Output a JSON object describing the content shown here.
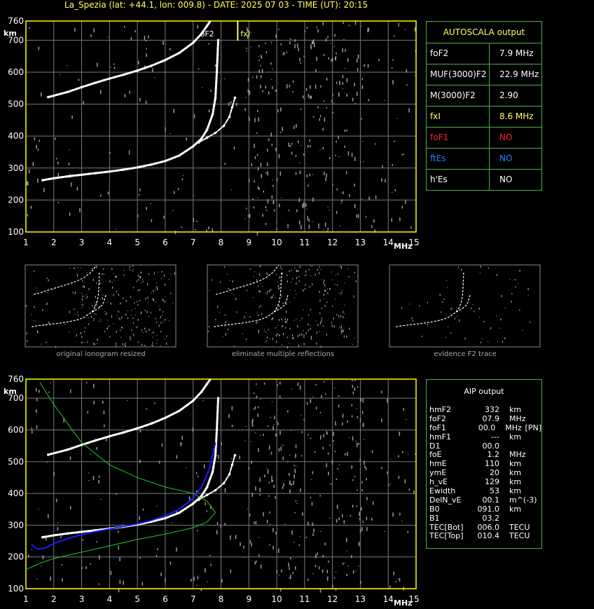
{
  "header": {
    "title": "La_Spezia (lat: +44.1, lon: 009.8) - DATE: 2025 07 03 - TIME (UT): 20:15"
  },
  "colors": {
    "axis": "#ffff00",
    "grid": "#7a7a7a",
    "trace": "#ffffff",
    "noise": "#9a9a9a",
    "border": "#4caf50",
    "green_curve": "#22cc22",
    "blue_curve": "#1a1aff",
    "red": "#ff2020",
    "blue_text": "#2080ff",
    "yellow_text": "#ffff66"
  },
  "autoscala": {
    "title": "AUTOSCALA output",
    "rows": [
      {
        "key": "foF2",
        "value": "7.9 MHz",
        "color": "#ffffff"
      },
      {
        "key": "MUF(3000)F2",
        "value": "22.9 MHz",
        "color": "#ffffff"
      },
      {
        "key": "M(3000)F2",
        "value": "2.90",
        "color": "#ffffff"
      },
      {
        "key": "fxI",
        "value": "8.6 MHz",
        "color": "#ffff66"
      },
      {
        "key": "foF1",
        "value": "NO",
        "color": "#ff2020"
      },
      {
        "key": "ftEs",
        "value": "NO",
        "color": "#2080ff"
      },
      {
        "key": "h'Es",
        "value": "NO",
        "color": "#ffffff"
      }
    ]
  },
  "aip": {
    "title": "AIP output",
    "rows": [
      {
        "k": "hmF2",
        "v": "332",
        "u": "km",
        "x": ""
      },
      {
        "k": "foF2",
        "v": "07.9",
        "u": "MHz",
        "x": ""
      },
      {
        "k": "foF1",
        "v": "00.0",
        "u": "MHz",
        "x": "[PN]"
      },
      {
        "k": "hmF1",
        "v": "---",
        "u": "km",
        "x": ""
      },
      {
        "k": "D1",
        "v": "00.0",
        "u": "",
        "x": ""
      },
      {
        "k": "foE",
        "v": "1.2",
        "u": "MHz",
        "x": ""
      },
      {
        "k": "hmE",
        "v": "110",
        "u": "km",
        "x": ""
      },
      {
        "k": "ymE",
        "v": "20",
        "u": "km",
        "x": ""
      },
      {
        "k": "h_vE",
        "v": "129",
        "u": "km",
        "x": ""
      },
      {
        "k": "Ewidth",
        "v": "53",
        "u": "km",
        "x": ""
      },
      {
        "k": "DelN_vE",
        "v": "00.1",
        "u": "m^(-3)",
        "x": ""
      },
      {
        "k": "B0",
        "v": "091.0",
        "u": "km",
        "x": ""
      },
      {
        "k": "B1",
        "v": "03.2",
        "u": "",
        "x": ""
      },
      {
        "k": "TEC[Bot]",
        "v": "006.0",
        "u": "TECU",
        "x": ""
      },
      {
        "k": "TEC[Top]",
        "v": "010.4",
        "u": "TECU",
        "x": ""
      }
    ]
  },
  "thumbnails": [
    {
      "label": "original ionogram resized"
    },
    {
      "label": "eliminate multiple reflections"
    },
    {
      "label": "evidence F2 trace"
    }
  ],
  "chart_data": [
    {
      "type": "scatter",
      "title": "",
      "xlabel": "MHz",
      "ylabel": "km",
      "xlim": [
        1,
        15
      ],
      "ylim": [
        100,
        760
      ],
      "xticks": [
        1,
        2,
        3,
        4,
        5,
        6,
        7,
        8,
        9,
        10,
        11,
        12,
        13,
        14,
        15
      ],
      "yticks": [
        100,
        200,
        300,
        400,
        500,
        600,
        700,
        760
      ],
      "grid": true,
      "annotations": [
        {
          "text": "oF2",
          "x": 7.5,
          "y": 720
        },
        {
          "text": "fxI",
          "x": 8.6,
          "y": 720
        }
      ],
      "series": [
        {
          "role": "F2 ordinary trace",
          "x": [
            1.6,
            2.0,
            2.5,
            3.0,
            3.5,
            4.0,
            4.5,
            5.0,
            5.5,
            6.0,
            6.5,
            7.0,
            7.3,
            7.5,
            7.7,
            7.8,
            7.85,
            7.9
          ],
          "y": [
            262,
            268,
            274,
            279,
            284,
            289,
            295,
            302,
            311,
            322,
            339,
            368,
            392,
            420,
            468,
            520,
            600,
            700
          ]
        },
        {
          "role": "F2 extraordinary trace",
          "x": [
            7.2,
            7.5,
            7.8,
            8.1,
            8.3,
            8.4,
            8.5
          ],
          "y": [
            380,
            395,
            410,
            432,
            460,
            490,
            520
          ]
        },
        {
          "role": "2F2 multiple reflection",
          "x": [
            1.8,
            2.5,
            3.0,
            3.5,
            4.0,
            4.5,
            5.0,
            5.5,
            6.0,
            6.5,
            7.0,
            7.3,
            7.5,
            7.6
          ],
          "y": [
            522,
            538,
            553,
            567,
            580,
            592,
            605,
            620,
            638,
            660,
            692,
            720,
            745,
            758
          ]
        }
      ]
    },
    {
      "type": "line",
      "title": "",
      "xlabel": "MHz",
      "ylabel": "km",
      "xlim": [
        1,
        15
      ],
      "ylim": [
        100,
        760
      ],
      "xticks": [
        1,
        2,
        3,
        4,
        5,
        6,
        7,
        8,
        9,
        10,
        11,
        12,
        13,
        14,
        15
      ],
      "yticks": [
        100,
        200,
        300,
        400,
        500,
        600,
        700,
        760
      ],
      "grid": true,
      "series": [
        {
          "role": "AIP true height profile (blue)",
          "x": [
            1.2,
            1.4,
            1.7,
            2.0,
            2.5,
            3.0,
            3.5,
            4.0,
            4.5,
            5.0,
            5.5,
            6.0,
            6.5,
            7.0,
            7.3,
            7.6,
            7.8
          ],
          "y": [
            240,
            225,
            228,
            242,
            258,
            270,
            280,
            288,
            296,
            304,
            315,
            330,
            350,
            385,
            420,
            480,
            560
          ]
        },
        {
          "role": "AIP model curve (green)",
          "x": [
            1.0,
            1.5,
            2.0,
            3.0,
            4.0,
            5.0,
            6.0,
            7.0,
            7.5,
            7.8,
            7.5,
            7.0,
            6.0,
            5.0,
            4.0,
            3.0,
            2.5,
            2.0,
            1.5
          ],
          "y": [
            160,
            180,
            195,
            215,
            235,
            255,
            272,
            292,
            310,
            340,
            375,
            400,
            420,
            450,
            490,
            560,
            620,
            680,
            750
          ]
        }
      ]
    }
  ]
}
